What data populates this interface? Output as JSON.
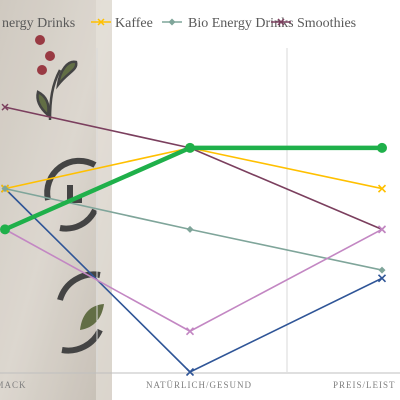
{
  "chart_data": {
    "type": "line",
    "title": "",
    "xlabel": "",
    "ylabel": "",
    "categories": [
      "GESCHMACK",
      "NATÜRLICH/GESUND",
      "PREIS/LEISTUNG"
    ],
    "category_labels_visible": [
      "HMACK",
      "NATÜRLICH/GESUND",
      "PREIS/LEIST"
    ],
    "ylim": [
      0,
      8
    ],
    "grid": "vertical",
    "legend_position": "top",
    "series": [
      {
        "name": "Energy Drinks",
        "legend_text": "nergy Drinks",
        "color": "#2f5597",
        "values": [
          4.5,
          0,
          2.3
        ]
      },
      {
        "name": "Kaffee",
        "color": "#ffc000",
        "values": [
          4.5,
          5.5,
          4.5
        ]
      },
      {
        "name": "Bio Energy Drinks",
        "color": "#7fa59a",
        "values": [
          4.5,
          3.5,
          2.5
        ]
      },
      {
        "name": "Smoothies",
        "color": "#7b3f5e",
        "values": [
          6.5,
          5.5,
          3.5
        ]
      },
      {
        "name": "",
        "color": "#c387c3",
        "values": [
          3.5,
          1.0,
          3.5
        ]
      },
      {
        "name": "",
        "color": "#1fb04a",
        "values": [
          3.5,
          5.5,
          5.5
        ]
      }
    ]
  }
}
